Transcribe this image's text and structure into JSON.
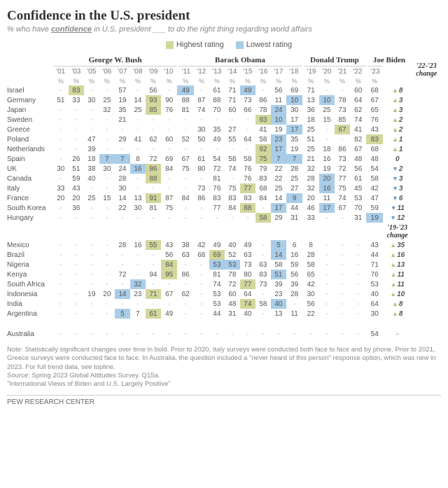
{
  "title": "Confidence in the U.S. president",
  "subtitle_html": "% who have <u>confidence</u> in U.S. president ___ to do the right thing regarding world affairs",
  "legend": {
    "high": "Highest rating",
    "low": "Lowest rating",
    "high_color": "#d1d79b",
    "low_color": "#a9cde8"
  },
  "presidents": [
    {
      "name": "George W. Bush",
      "span": 8
    },
    {
      "name": "Barack Obama",
      "span": 8
    },
    {
      "name": "Donald Trump",
      "span": 4
    },
    {
      "name": "Joe Biden",
      "span": 3
    }
  ],
  "years": [
    "'01",
    "'03",
    "'05",
    "'06",
    "'07",
    "'08",
    "'09",
    "'10",
    "'11",
    "'12",
    "'13",
    "'14",
    "'15",
    "'16",
    "'17",
    "'18",
    "'19",
    "'20",
    "'21",
    "'22",
    "'23"
  ],
  "change_headers": {
    "top": "'22-'23\nchange",
    "mid": "'19-'23\nchange"
  },
  "colors": {
    "up": "#b7c26f",
    "down": "#6b9bc3",
    "text": "#555555",
    "muted": "#888888"
  },
  "groups": [
    {
      "change_header": "top",
      "rows": [
        {
          "c": "Israel",
          "v": [
            null,
            {
              "n": 83,
              "h": 1
            },
            null,
            null,
            57,
            null,
            56,
            null,
            {
              "n": 49,
              "l": 1
            },
            null,
            61,
            71,
            {
              "n": 49,
              "l": 1
            },
            null,
            56,
            69,
            71,
            null,
            null,
            60,
            68
          ],
          "ch": {
            "n": 8,
            "d": "up"
          }
        },
        {
          "c": "Germany",
          "v": [
            51,
            33,
            30,
            25,
            19,
            14,
            {
              "n": 93,
              "h": 1
            },
            90,
            88,
            87,
            88,
            71,
            73,
            86,
            11,
            {
              "n": 10,
              "l": 1
            },
            13,
            {
              "n": 10,
              "l": 1
            },
            78,
            64,
            67
          ],
          "ch": {
            "n": 3,
            "d": "up"
          }
        },
        {
          "c": "Japan",
          "v": [
            null,
            null,
            null,
            32,
            35,
            25,
            {
              "n": 85,
              "h": 1
            },
            76,
            81,
            74,
            70,
            60,
            66,
            78,
            {
              "n": 24,
              "l": 1
            },
            30,
            36,
            25,
            73,
            62,
            65
          ],
          "ch": {
            "n": 3,
            "d": "up"
          }
        },
        {
          "c": "Sweden",
          "v": [
            null,
            null,
            null,
            null,
            21,
            null,
            null,
            null,
            null,
            null,
            null,
            null,
            null,
            {
              "n": 93,
              "h": 1
            },
            {
              "n": 10,
              "l": 1
            },
            17,
            18,
            15,
            85,
            74,
            76
          ],
          "ch": {
            "n": 2,
            "d": "up"
          }
        },
        {
          "c": "Greece",
          "v": [
            null,
            null,
            null,
            null,
            null,
            null,
            null,
            null,
            null,
            30,
            35,
            27,
            null,
            41,
            19,
            {
              "n": 17,
              "l": 1
            },
            25,
            null,
            {
              "n": 67,
              "h": 1
            },
            41,
            43
          ],
          "ch": {
            "n": 2,
            "d": "up"
          }
        },
        {
          "c": "Poland",
          "v": [
            null,
            null,
            47,
            null,
            29,
            41,
            62,
            60,
            52,
            50,
            49,
            55,
            64,
            58,
            {
              "n": 23,
              "l": 1
            },
            35,
            51,
            null,
            null,
            82,
            {
              "n": 83,
              "h": 1
            }
          ],
          "ch": {
            "n": 1,
            "d": "up"
          }
        },
        {
          "c": "Netherlands",
          "v": [
            null,
            null,
            39,
            null,
            null,
            null,
            null,
            null,
            null,
            null,
            null,
            null,
            null,
            {
              "n": 92,
              "h": 1
            },
            {
              "n": 17,
              "l": 1
            },
            19,
            25,
            18,
            86,
            67,
            68
          ],
          "ch": {
            "n": 1,
            "d": "up"
          }
        },
        {
          "c": "Spain",
          "v": [
            null,
            26,
            18,
            {
              "n": 7,
              "l": 1
            },
            {
              "n": 7,
              "l": 1
            },
            8,
            72,
            69,
            67,
            61,
            54,
            58,
            58,
            {
              "n": 75,
              "h": 1
            },
            {
              "n": 7,
              "l": 1
            },
            {
              "n": 7,
              "l": 1
            },
            21,
            16,
            73,
            48,
            48
          ],
          "ch": {
            "n": 0,
            "d": "flat"
          }
        },
        {
          "c": "UK",
          "v": [
            30,
            51,
            38,
            30,
            24,
            {
              "n": 16,
              "l": 1
            },
            {
              "n": 86,
              "h": 1
            },
            84,
            75,
            80,
            72,
            74,
            76,
            79,
            22,
            28,
            32,
            19,
            72,
            56,
            54
          ],
          "ch": {
            "n": 2,
            "d": "dn"
          }
        },
        {
          "c": "Canada",
          "v": [
            null,
            59,
            40,
            null,
            28,
            null,
            {
              "n": 88,
              "h": 1
            },
            null,
            null,
            null,
            81,
            null,
            76,
            83,
            22,
            25,
            28,
            {
              "n": 20,
              "l": 1
            },
            77,
            61,
            58
          ],
          "ch": {
            "n": 3,
            "d": "dn"
          }
        },
        {
          "c": "Italy",
          "v": [
            33,
            43,
            null,
            null,
            30,
            null,
            null,
            null,
            null,
            73,
            76,
            75,
            {
              "n": 77,
              "h": 1
            },
            68,
            25,
            27,
            32,
            {
              "n": 16,
              "l": 1
            },
            75,
            45,
            42
          ],
          "ch": {
            "n": 3,
            "d": "dn"
          }
        },
        {
          "c": "France",
          "v": [
            20,
            20,
            25,
            15,
            14,
            13,
            {
              "n": 91,
              "h": 1
            },
            87,
            84,
            86,
            83,
            83,
            83,
            84,
            14,
            {
              "n": 9,
              "l": 1
            },
            20,
            11,
            74,
            53,
            47
          ],
          "ch": {
            "n": 6,
            "d": "dn"
          }
        },
        {
          "c": "South Korea",
          "v": [
            null,
            36,
            null,
            null,
            22,
            30,
            81,
            75,
            null,
            null,
            77,
            84,
            {
              "n": 88,
              "h": 1
            },
            null,
            {
              "n": 17,
              "l": 1
            },
            44,
            46,
            {
              "n": 17,
              "l": 1
            },
            67,
            70,
            59
          ],
          "ch": {
            "n": 11,
            "d": "dn"
          }
        },
        {
          "c": "Hungary",
          "v": [
            null,
            null,
            null,
            null,
            null,
            null,
            null,
            null,
            null,
            null,
            null,
            null,
            null,
            {
              "n": 58,
              "h": 1
            },
            29,
            31,
            33,
            null,
            null,
            31,
            {
              "n": 19,
              "l": 1
            }
          ],
          "ch": {
            "n": 12,
            "d": "dn"
          }
        }
      ]
    },
    {
      "change_header": "mid",
      "rows": [
        {
          "c": "Mexico",
          "v": [
            null,
            null,
            null,
            null,
            28,
            16,
            {
              "n": 55,
              "h": 1
            },
            43,
            38,
            42,
            49,
            40,
            49,
            null,
            {
              "n": 5,
              "l": 1
            },
            6,
            8,
            null,
            null,
            null,
            43
          ],
          "ch": {
            "n": 35,
            "d": "up"
          }
        },
        {
          "c": "Brazil",
          "v": [
            null,
            null,
            null,
            null,
            null,
            null,
            null,
            56,
            63,
            68,
            {
              "n": 69,
              "h": 1
            },
            52,
            63,
            null,
            {
              "n": 14,
              "l": 1
            },
            16,
            28,
            null,
            null,
            null,
            44
          ],
          "ch": {
            "n": 16,
            "d": "up"
          }
        },
        {
          "c": "Nigeria",
          "v": [
            null,
            null,
            null,
            null,
            null,
            null,
            null,
            {
              "n": 84,
              "h": 1
            },
            null,
            null,
            {
              "n": 53,
              "l": 1
            },
            {
              "n": 53,
              "l": 1
            },
            73,
            63,
            58,
            59,
            58,
            null,
            null,
            null,
            71
          ],
          "ch": {
            "n": 13,
            "d": "up"
          }
        },
        {
          "c": "Kenya",
          "v": [
            null,
            null,
            null,
            null,
            72,
            null,
            94,
            {
              "n": 95,
              "h": 1
            },
            86,
            null,
            81,
            78,
            80,
            83,
            {
              "n": 51,
              "l": 1
            },
            56,
            65,
            null,
            null,
            null,
            76
          ],
          "ch": {
            "n": 11,
            "d": "up"
          }
        },
        {
          "c": "South Africa",
          "v": [
            null,
            null,
            null,
            null,
            null,
            {
              "n": 32,
              "l": 1
            },
            null,
            null,
            null,
            null,
            74,
            72,
            {
              "n": 77,
              "h": 1
            },
            73,
            39,
            39,
            42,
            null,
            null,
            null,
            53
          ],
          "ch": {
            "n": 11,
            "d": "up"
          }
        },
        {
          "c": "Indonesia",
          "v": [
            null,
            null,
            19,
            20,
            {
              "n": 14,
              "l": 1
            },
            23,
            {
              "n": 71,
              "h": 1
            },
            67,
            62,
            null,
            53,
            60,
            64,
            null,
            23,
            28,
            30,
            null,
            null,
            null,
            40
          ],
          "ch": {
            "n": 10,
            "d": "up"
          }
        },
        {
          "c": "India",
          "v": [
            null,
            null,
            null,
            null,
            null,
            null,
            null,
            null,
            null,
            null,
            53,
            48,
            {
              "n": 74,
              "h": 1
            },
            58,
            {
              "n": 40,
              "l": 1
            },
            null,
            56,
            null,
            null,
            null,
            64
          ],
          "ch": {
            "n": 8,
            "d": "up"
          }
        },
        {
          "c": "Argentina",
          "v": [
            null,
            null,
            null,
            null,
            {
              "n": 5,
              "l": 1
            },
            7,
            {
              "n": 61,
              "h": 1
            },
            49,
            null,
            null,
            44,
            31,
            40,
            null,
            13,
            11,
            22,
            null,
            null,
            null,
            30
          ],
          "ch": {
            "n": 8,
            "d": "up"
          }
        }
      ]
    },
    {
      "change_header": null,
      "rows": [
        {
          "c": "Australia",
          "v": [
            null,
            null,
            null,
            null,
            null,
            null,
            null,
            null,
            null,
            null,
            null,
            null,
            null,
            null,
            null,
            null,
            null,
            null,
            null,
            null,
            54
          ],
          "ch": {
            "n": null,
            "d": "flat"
          }
        }
      ]
    }
  ],
  "notes": "Note: Statistically significant changes over time in bold. Prior to 2020, Italy surveys were conducted both face to face and by phone. Prior to 2021, Greece surveys were conducted face to face. In Australia, the question included a \"never heard of this person\" response option, which was new in 2023. For full trend data, see topline.",
  "source": "Source: Spring 2023 Global Attitudes Survey. Q15a.",
  "report": "\"International Views of Biden and U.S. Largely Positive\"",
  "footer": "PEW RESEARCH CENTER"
}
